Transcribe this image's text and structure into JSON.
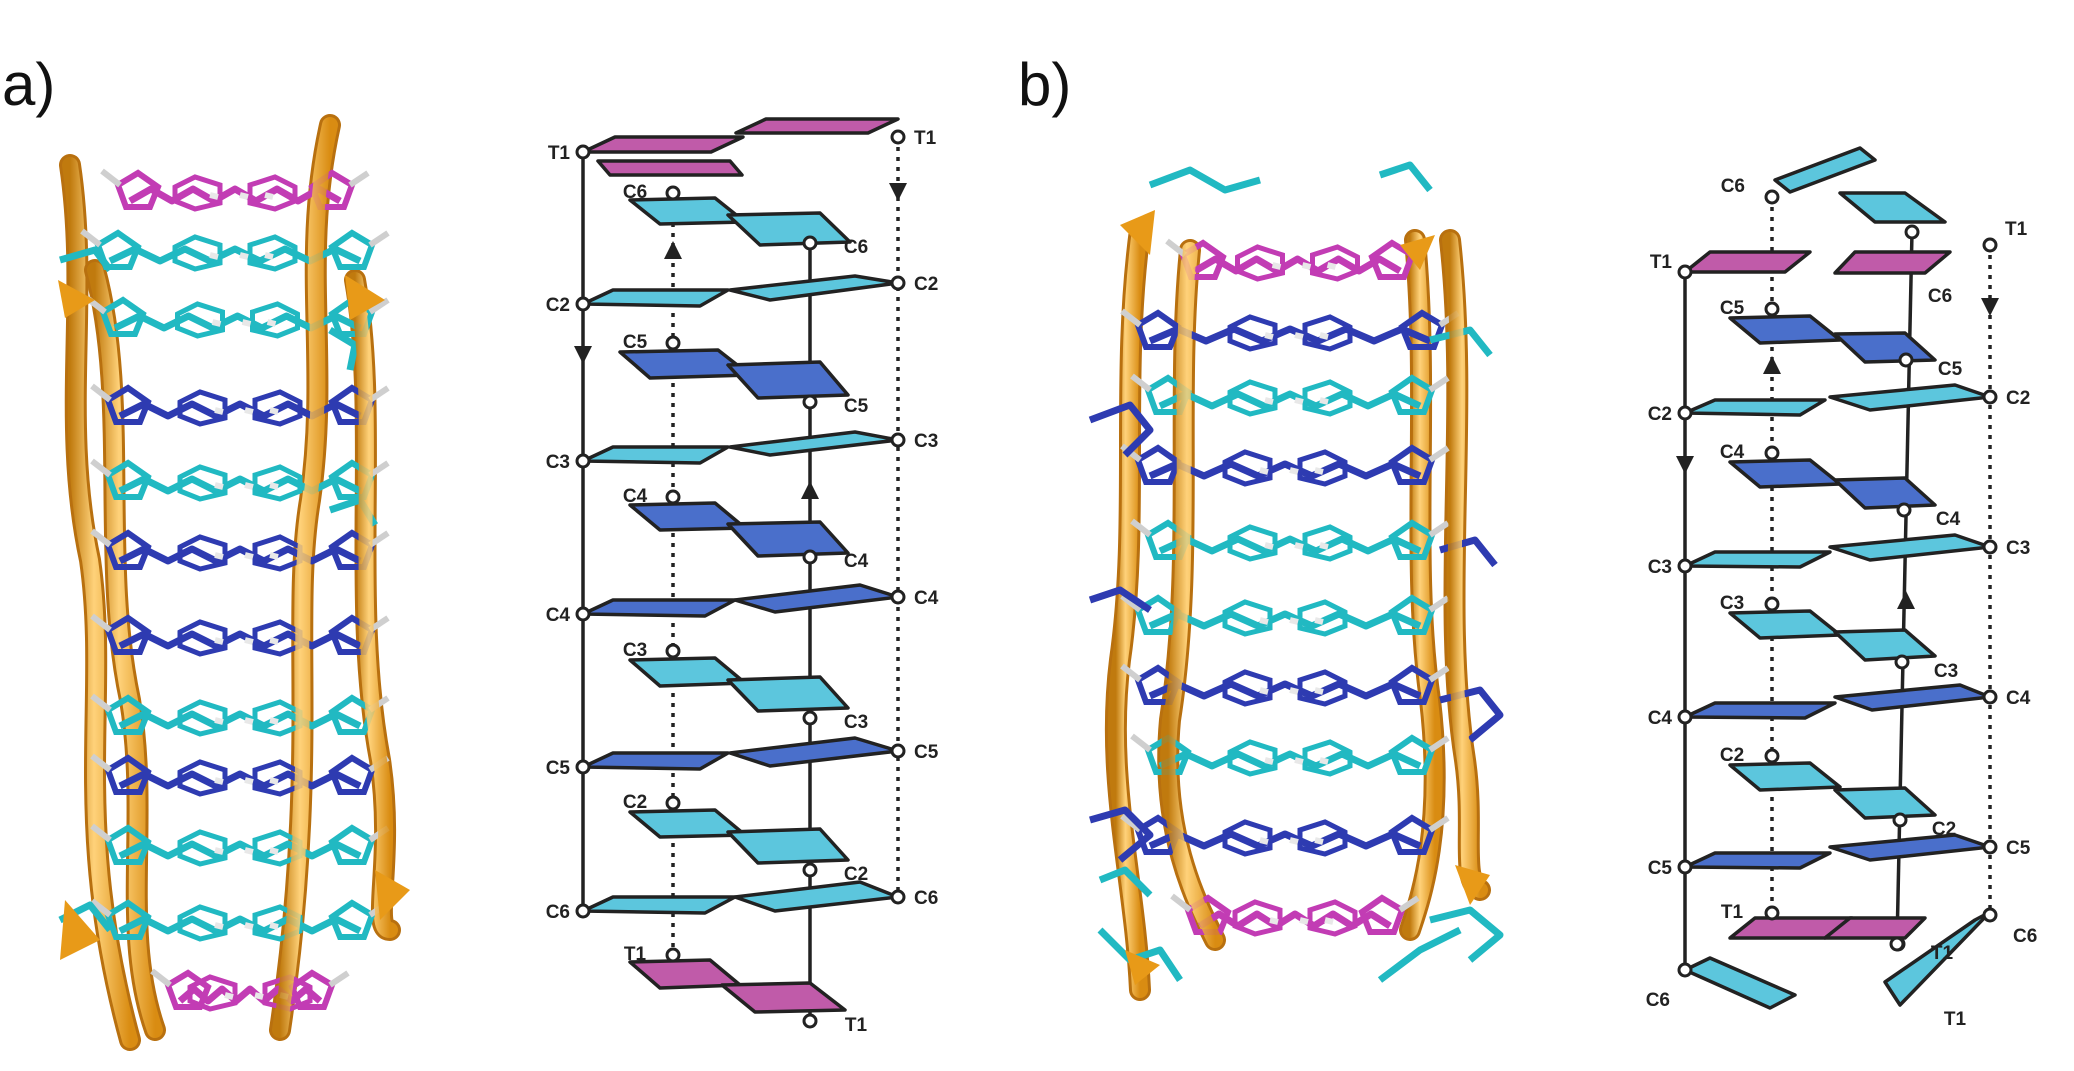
{
  "panels": [
    {
      "label": "a)",
      "schematic": {
        "left_strand": [
          "T1",
          "C2",
          "C3",
          "C4",
          "C5",
          "C6"
        ],
        "right_strand": [
          "T1",
          "C2",
          "C3",
          "C4",
          "C5",
          "C6"
        ],
        "inner_strand_a": [
          "C6",
          "C5",
          "C4",
          "C3",
          "C2",
          "T1"
        ],
        "inner_strand_b": [
          "C6",
          "C5",
          "C4",
          "C3",
          "C2",
          "T1"
        ]
      }
    },
    {
      "label": "b)",
      "schematic": {
        "left_strand": [
          "T1",
          "C2",
          "C3",
          "C4",
          "C5",
          "C6"
        ],
        "right_strand": [
          "T1",
          "C2",
          "C3",
          "C4",
          "C5",
          "C6"
        ],
        "inner_strand_a": [
          "C6",
          "C5",
          "C4",
          "C3",
          "C2",
          "T1"
        ],
        "inner_strand_b": [
          "C6",
          "C5",
          "C4",
          "C3",
          "C2",
          "T1"
        ]
      }
    }
  ],
  "colors": {
    "thymine": "#c05ba9",
    "cytosine_light": "#5cc6dd",
    "cytosine_dark": "#4a6fcb",
    "backbone": "#f5a82a",
    "stick_cyan": "#21b9c2",
    "stick_blue": "#2e3bb1",
    "stick_magenta": "#c23cb4",
    "outline": "#222222"
  }
}
